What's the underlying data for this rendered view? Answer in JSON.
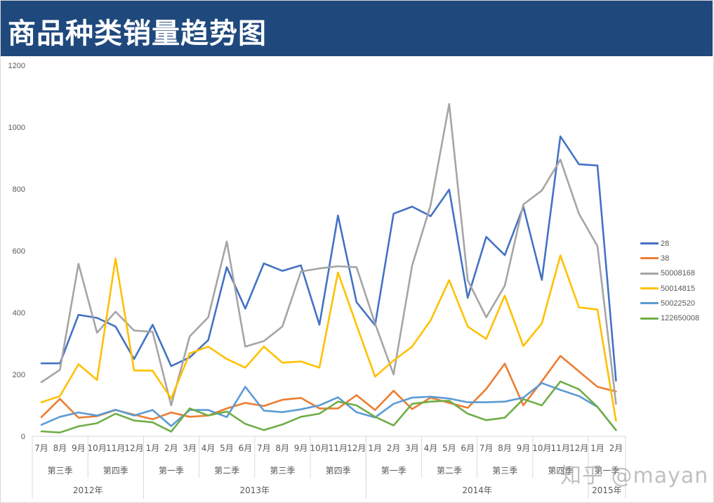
{
  "header": {
    "title": "商品种类销量趋势图"
  },
  "watermark": "知乎 @mayan",
  "chart_data": {
    "type": "line",
    "title": "商品种类销量趋势图",
    "xlabel": "",
    "ylabel": "",
    "ylim": [
      0,
      1200
    ],
    "yticks": [
      0,
      200,
      400,
      600,
      800,
      1000,
      1200
    ],
    "grid": false,
    "legend_position": "right",
    "x_levels": {
      "months": [
        "7月",
        "8月",
        "9月",
        "10月",
        "11月",
        "12月",
        "1月",
        "2月",
        "3月",
        "4月",
        "5月",
        "6月",
        "7月",
        "8月",
        "9月",
        "10月",
        "11月",
        "12月",
        "1月",
        "2月",
        "3月",
        "4月",
        "5月",
        "6月",
        "7月",
        "8月",
        "9月",
        "10月",
        "11月",
        "12月",
        "1月",
        "2月"
      ],
      "quarters": [
        {
          "label": "第三季",
          "span": 3
        },
        {
          "label": "第四季",
          "span": 3
        },
        {
          "label": "第一季",
          "span": 3
        },
        {
          "label": "第二季",
          "span": 3
        },
        {
          "label": "第三季",
          "span": 3
        },
        {
          "label": "第四季",
          "span": 3
        },
        {
          "label": "第一季",
          "span": 3
        },
        {
          "label": "第二季",
          "span": 3
        },
        {
          "label": "第三季",
          "span": 3
        },
        {
          "label": "第四季",
          "span": 3
        },
        {
          "label": "第一季",
          "span": 2
        }
      ],
      "years": [
        {
          "label": "2012年",
          "span": 6
        },
        {
          "label": "2013年",
          "span": 12
        },
        {
          "label": "2014年",
          "span": 12
        },
        {
          "label": "2015年",
          "span": 2
        }
      ]
    },
    "series": [
      {
        "name": "28",
        "color": "#4472c4",
        "values": [
          236,
          236,
          393,
          383,
          355,
          250,
          361,
          227,
          255,
          311,
          547,
          413,
          559,
          535,
          553,
          361,
          714,
          434,
          359,
          720,
          743,
          712,
          798,
          448,
          645,
          586,
          743,
          506,
          970,
          880,
          876,
          180
        ]
      },
      {
        "name": "38",
        "color": "#ed7d31",
        "values": [
          62,
          121,
          60,
          65,
          85,
          70,
          55,
          77,
          63,
          67,
          90,
          108,
          98,
          118,
          124,
          90,
          90,
          133,
          85,
          147,
          88,
          125,
          108,
          92,
          153,
          235,
          100,
          178,
          260,
          210,
          160,
          145
        ]
      },
      {
        "name": "50008168",
        "color": "#a5a5a5",
        "values": [
          175,
          215,
          558,
          335,
          403,
          342,
          338,
          100,
          323,
          385,
          630,
          290,
          308,
          355,
          533,
          543,
          550,
          547,
          365,
          200,
          552,
          748,
          1075,
          505,
          385,
          487,
          750,
          795,
          895,
          720,
          615,
          105
        ]
      },
      {
        "name": "50014815",
        "color": "#ffc000",
        "values": [
          110,
          130,
          233,
          182,
          575,
          213,
          212,
          122,
          268,
          290,
          250,
          222,
          290,
          238,
          242,
          222,
          530,
          360,
          193,
          245,
          290,
          375,
          505,
          355,
          315,
          455,
          292,
          365,
          585,
          417,
          410,
          50
        ]
      },
      {
        "name": "50022520",
        "color": "#5b9bd5",
        "values": [
          37,
          63,
          77,
          67,
          86,
          67,
          85,
          33,
          85,
          85,
          62,
          160,
          83,
          78,
          87,
          100,
          126,
          78,
          61,
          105,
          125,
          128,
          122,
          110,
          110,
          112,
          125,
          172,
          150,
          130,
          95,
          20
        ]
      },
      {
        "name": "122650008",
        "color": "#70ad47",
        "values": [
          16,
          12,
          32,
          42,
          73,
          51,
          45,
          15,
          90,
          67,
          80,
          40,
          20,
          38,
          63,
          73,
          112,
          100,
          63,
          35,
          105,
          112,
          115,
          73,
          52,
          60,
          120,
          100,
          177,
          152,
          95,
          20
        ]
      }
    ]
  }
}
